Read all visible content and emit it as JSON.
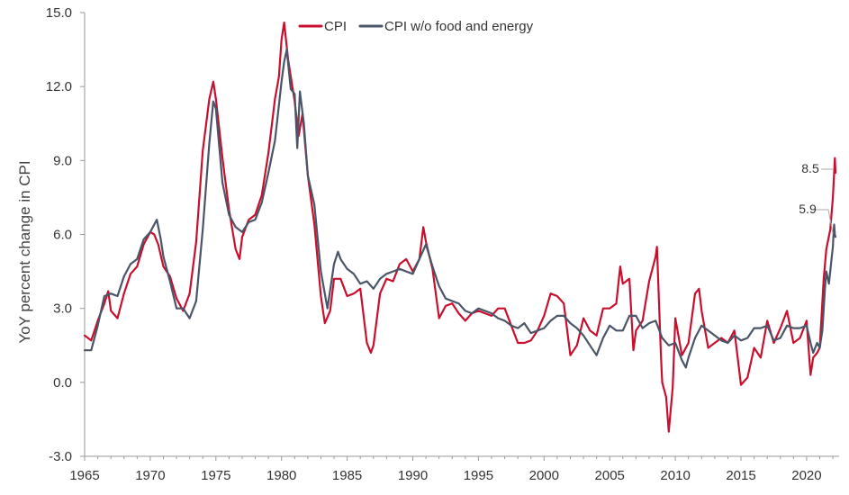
{
  "chart_data": {
    "type": "line",
    "title": "",
    "xlabel": "",
    "ylabel": "YoY percent change in CPI",
    "xlim": [
      1965,
      2022.2
    ],
    "ylim": [
      -3.0,
      15.0
    ],
    "yticks": [
      -3.0,
      0.0,
      3.0,
      6.0,
      9.0,
      12.0,
      15.0
    ],
    "ytick_labels": [
      "-3.0",
      "0.0",
      "3.0",
      "6.0",
      "9.0",
      "12.0",
      "15.0"
    ],
    "xticks": [
      1965,
      1970,
      1975,
      1980,
      1985,
      1990,
      1995,
      2000,
      2005,
      2010,
      2015,
      2020
    ],
    "xtick_labels": [
      "1965",
      "1970",
      "1975",
      "1980",
      "1985",
      "1990",
      "1995",
      "2000",
      "2005",
      "2010",
      "2015",
      "2020"
    ],
    "grid": false,
    "legend_position": "top-center",
    "series": [
      {
        "name": "CPI",
        "color": "#c8102e",
        "points": [
          [
            1965.0,
            1.9
          ],
          [
            1965.5,
            1.7
          ],
          [
            1966.0,
            2.5
          ],
          [
            1966.5,
            3.2
          ],
          [
            1966.8,
            3.7
          ],
          [
            1967.0,
            2.9
          ],
          [
            1967.5,
            2.6
          ],
          [
            1968.0,
            3.6
          ],
          [
            1968.5,
            4.4
          ],
          [
            1969.0,
            4.7
          ],
          [
            1969.5,
            5.6
          ],
          [
            1970.0,
            6.1
          ],
          [
            1970.3,
            6.0
          ],
          [
            1970.6,
            5.6
          ],
          [
            1971.0,
            4.7
          ],
          [
            1971.5,
            4.3
          ],
          [
            1972.0,
            3.4
          ],
          [
            1972.5,
            2.9
          ],
          [
            1973.0,
            3.6
          ],
          [
            1973.5,
            5.7
          ],
          [
            1974.0,
            9.4
          ],
          [
            1974.5,
            11.5
          ],
          [
            1974.8,
            12.2
          ],
          [
            1975.0,
            11.5
          ],
          [
            1975.5,
            9.1
          ],
          [
            1976.0,
            7.0
          ],
          [
            1976.5,
            5.4
          ],
          [
            1976.8,
            5.0
          ],
          [
            1977.0,
            5.9
          ],
          [
            1977.5,
            6.6
          ],
          [
            1978.0,
            6.8
          ],
          [
            1978.5,
            7.6
          ],
          [
            1979.0,
            9.3
          ],
          [
            1979.5,
            11.5
          ],
          [
            1979.8,
            12.4
          ],
          [
            1980.0,
            13.9
          ],
          [
            1980.2,
            14.6
          ],
          [
            1980.5,
            13.1
          ],
          [
            1981.0,
            11.4
          ],
          [
            1981.3,
            10.0
          ],
          [
            1981.6,
            10.9
          ],
          [
            1982.0,
            8.4
          ],
          [
            1982.5,
            6.4
          ],
          [
            1983.0,
            3.5
          ],
          [
            1983.3,
            2.4
          ],
          [
            1983.7,
            2.9
          ],
          [
            1984.0,
            4.2
          ],
          [
            1984.5,
            4.2
          ],
          [
            1985.0,
            3.5
          ],
          [
            1985.5,
            3.6
          ],
          [
            1986.0,
            3.8
          ],
          [
            1986.5,
            1.6
          ],
          [
            1986.8,
            1.2
          ],
          [
            1987.0,
            1.5
          ],
          [
            1987.5,
            3.6
          ],
          [
            1988.0,
            4.2
          ],
          [
            1988.5,
            4.1
          ],
          [
            1989.0,
            4.8
          ],
          [
            1989.5,
            5.0
          ],
          [
            1990.0,
            4.5
          ],
          [
            1990.5,
            5.0
          ],
          [
            1990.8,
            6.3
          ],
          [
            1991.0,
            5.7
          ],
          [
            1991.5,
            4.6
          ],
          [
            1992.0,
            2.6
          ],
          [
            1992.5,
            3.1
          ],
          [
            1993.0,
            3.2
          ],
          [
            1993.5,
            2.8
          ],
          [
            1994.0,
            2.5
          ],
          [
            1994.5,
            2.8
          ],
          [
            1995.0,
            2.9
          ],
          [
            1995.5,
            2.8
          ],
          [
            1996.0,
            2.7
          ],
          [
            1996.5,
            3.0
          ],
          [
            1997.0,
            3.0
          ],
          [
            1997.5,
            2.3
          ],
          [
            1998.0,
            1.6
          ],
          [
            1998.5,
            1.6
          ],
          [
            1999.0,
            1.7
          ],
          [
            1999.5,
            2.1
          ],
          [
            2000.0,
            2.7
          ],
          [
            2000.5,
            3.6
          ],
          [
            2001.0,
            3.5
          ],
          [
            2001.5,
            3.2
          ],
          [
            2002.0,
            1.1
          ],
          [
            2002.5,
            1.5
          ],
          [
            2003.0,
            2.6
          ],
          [
            2003.5,
            2.1
          ],
          [
            2004.0,
            1.9
          ],
          [
            2004.5,
            3.0
          ],
          [
            2005.0,
            3.0
          ],
          [
            2005.5,
            3.2
          ],
          [
            2005.8,
            4.7
          ],
          [
            2006.0,
            4.0
          ],
          [
            2006.5,
            4.2
          ],
          [
            2006.8,
            1.3
          ],
          [
            2007.0,
            2.1
          ],
          [
            2007.5,
            2.5
          ],
          [
            2008.0,
            4.1
          ],
          [
            2008.5,
            5.1
          ],
          [
            2008.6,
            5.5
          ],
          [
            2008.9,
            1.1
          ],
          [
            2009.0,
            0.0
          ],
          [
            2009.3,
            -0.6
          ],
          [
            2009.5,
            -2.0
          ],
          [
            2009.8,
            -0.2
          ],
          [
            2010.0,
            2.6
          ],
          [
            2010.5,
            1.1
          ],
          [
            2011.0,
            1.6
          ],
          [
            2011.5,
            3.6
          ],
          [
            2011.8,
            3.8
          ],
          [
            2012.0,
            2.9
          ],
          [
            2012.5,
            1.4
          ],
          [
            2013.0,
            1.6
          ],
          [
            2013.5,
            1.8
          ],
          [
            2014.0,
            1.6
          ],
          [
            2014.5,
            2.1
          ],
          [
            2015.0,
            -0.1
          ],
          [
            2015.5,
            0.2
          ],
          [
            2016.0,
            1.4
          ],
          [
            2016.5,
            1.0
          ],
          [
            2017.0,
            2.5
          ],
          [
            2017.5,
            1.6
          ],
          [
            2018.0,
            2.2
          ],
          [
            2018.5,
            2.9
          ],
          [
            2019.0,
            1.6
          ],
          [
            2019.5,
            1.8
          ],
          [
            2020.0,
            2.5
          ],
          [
            2020.3,
            0.3
          ],
          [
            2020.5,
            1.0
          ],
          [
            2020.8,
            1.2
          ],
          [
            2021.0,
            1.4
          ],
          [
            2021.3,
            4.2
          ],
          [
            2021.5,
            5.4
          ],
          [
            2021.8,
            6.2
          ],
          [
            2022.0,
            7.5
          ],
          [
            2022.1,
            8.5
          ],
          [
            2022.15,
            9.1
          ],
          [
            2022.2,
            8.5
          ]
        ]
      },
      {
        "name": "CPI w/o food and energy",
        "color": "#4a5568",
        "points": [
          [
            1965.0,
            1.3
          ],
          [
            1965.5,
            1.3
          ],
          [
            1966.0,
            2.3
          ],
          [
            1966.5,
            3.5
          ],
          [
            1967.0,
            3.6
          ],
          [
            1967.5,
            3.5
          ],
          [
            1968.0,
            4.3
          ],
          [
            1968.5,
            4.8
          ],
          [
            1969.0,
            5.0
          ],
          [
            1969.5,
            5.8
          ],
          [
            1970.0,
            6.1
          ],
          [
            1970.3,
            6.4
          ],
          [
            1970.5,
            6.6
          ],
          [
            1970.8,
            5.8
          ],
          [
            1971.0,
            5.1
          ],
          [
            1971.5,
            4.1
          ],
          [
            1972.0,
            3.0
          ],
          [
            1972.5,
            3.0
          ],
          [
            1973.0,
            2.6
          ],
          [
            1973.5,
            3.3
          ],
          [
            1974.0,
            6.2
          ],
          [
            1974.5,
            9.7
          ],
          [
            1974.8,
            11.4
          ],
          [
            1975.0,
            11.1
          ],
          [
            1975.5,
            8.1
          ],
          [
            1976.0,
            6.8
          ],
          [
            1976.5,
            6.3
          ],
          [
            1977.0,
            6.1
          ],
          [
            1977.5,
            6.5
          ],
          [
            1978.0,
            6.6
          ],
          [
            1978.5,
            7.3
          ],
          [
            1979.0,
            8.5
          ],
          [
            1979.5,
            9.8
          ],
          [
            1980.0,
            12.2
          ],
          [
            1980.2,
            13.0
          ],
          [
            1980.4,
            13.5
          ],
          [
            1980.7,
            11.9
          ],
          [
            1981.0,
            11.7
          ],
          [
            1981.2,
            9.5
          ],
          [
            1981.4,
            11.8
          ],
          [
            1981.7,
            10.5
          ],
          [
            1982.0,
            8.4
          ],
          [
            1982.5,
            7.2
          ],
          [
            1983.0,
            4.5
          ],
          [
            1983.5,
            3.0
          ],
          [
            1984.0,
            4.8
          ],
          [
            1984.3,
            5.3
          ],
          [
            1984.5,
            5.0
          ],
          [
            1985.0,
            4.6
          ],
          [
            1985.5,
            4.4
          ],
          [
            1986.0,
            4.0
          ],
          [
            1986.5,
            4.1
          ],
          [
            1987.0,
            3.8
          ],
          [
            1987.5,
            4.2
          ],
          [
            1988.0,
            4.4
          ],
          [
            1988.5,
            4.5
          ],
          [
            1989.0,
            4.6
          ],
          [
            1989.5,
            4.5
          ],
          [
            1990.0,
            4.4
          ],
          [
            1990.5,
            5.0
          ],
          [
            1991.0,
            5.6
          ],
          [
            1991.5,
            4.7
          ],
          [
            1992.0,
            3.9
          ],
          [
            1992.5,
            3.4
          ],
          [
            1993.0,
            3.3
          ],
          [
            1993.5,
            3.2
          ],
          [
            1994.0,
            2.9
          ],
          [
            1994.5,
            2.8
          ],
          [
            1995.0,
            3.0
          ],
          [
            1995.5,
            2.9
          ],
          [
            1996.0,
            2.8
          ],
          [
            1996.5,
            2.6
          ],
          [
            1997.0,
            2.5
          ],
          [
            1997.5,
            2.3
          ],
          [
            1998.0,
            2.2
          ],
          [
            1998.5,
            2.4
          ],
          [
            1999.0,
            2.0
          ],
          [
            1999.5,
            2.1
          ],
          [
            2000.0,
            2.2
          ],
          [
            2000.5,
            2.5
          ],
          [
            2001.0,
            2.7
          ],
          [
            2001.5,
            2.7
          ],
          [
            2002.0,
            2.4
          ],
          [
            2002.5,
            2.2
          ],
          [
            2003.0,
            1.9
          ],
          [
            2003.5,
            1.5
          ],
          [
            2004.0,
            1.1
          ],
          [
            2004.5,
            1.8
          ],
          [
            2005.0,
            2.3
          ],
          [
            2005.5,
            2.1
          ],
          [
            2006.0,
            2.1
          ],
          [
            2006.5,
            2.7
          ],
          [
            2007.0,
            2.7
          ],
          [
            2007.5,
            2.2
          ],
          [
            2008.0,
            2.4
          ],
          [
            2008.5,
            2.5
          ],
          [
            2009.0,
            1.8
          ],
          [
            2009.5,
            1.5
          ],
          [
            2010.0,
            1.6
          ],
          [
            2010.5,
            0.9
          ],
          [
            2010.8,
            0.6
          ],
          [
            2011.0,
            1.0
          ],
          [
            2011.5,
            1.8
          ],
          [
            2012.0,
            2.3
          ],
          [
            2012.5,
            2.1
          ],
          [
            2013.0,
            1.9
          ],
          [
            2013.5,
            1.7
          ],
          [
            2014.0,
            1.6
          ],
          [
            2014.5,
            1.9
          ],
          [
            2015.0,
            1.7
          ],
          [
            2015.5,
            1.8
          ],
          [
            2016.0,
            2.2
          ],
          [
            2016.5,
            2.2
          ],
          [
            2017.0,
            2.3
          ],
          [
            2017.5,
            1.7
          ],
          [
            2018.0,
            1.8
          ],
          [
            2018.5,
            2.3
          ],
          [
            2019.0,
            2.2
          ],
          [
            2019.5,
            2.2
          ],
          [
            2020.0,
            2.3
          ],
          [
            2020.3,
            1.6
          ],
          [
            2020.5,
            1.2
          ],
          [
            2020.8,
            1.6
          ],
          [
            2021.0,
            1.4
          ],
          [
            2021.2,
            2.1
          ],
          [
            2021.4,
            3.8
          ],
          [
            2021.5,
            4.5
          ],
          [
            2021.7,
            4.0
          ],
          [
            2021.9,
            5.0
          ],
          [
            2022.0,
            5.5
          ],
          [
            2022.05,
            6.0
          ],
          [
            2022.1,
            6.4
          ],
          [
            2022.15,
            6.0
          ],
          [
            2022.2,
            5.9
          ]
        ]
      }
    ],
    "annotations": [
      {
        "text": "8.5",
        "x": 2022.2,
        "y": 8.5,
        "series": "CPI"
      },
      {
        "text": "5.9",
        "x": 2022.2,
        "y": 5.9,
        "series": "CPI w/o food and energy"
      }
    ]
  }
}
